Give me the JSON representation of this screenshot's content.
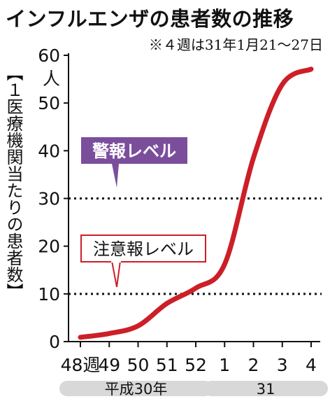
{
  "title": "インフルエンザの患者数の推移",
  "note": "※４週は31年1月21～27日",
  "ylabel": "【１医療機関当たりの患者数】",
  "y_unit": "人",
  "colors": {
    "line": "#cc1f27",
    "warning_box": "#7b4e9c",
    "advisory_border": "#cc1f27",
    "era_band": "#d8d8d8"
  },
  "chart_data": {
    "type": "line",
    "title": "インフルエンザの患者数の推移",
    "ylabel": "【１医療機関当たりの患者数】",
    "ylim": [
      0,
      60
    ],
    "yticks": [
      0,
      10,
      20,
      30,
      40,
      50,
      60
    ],
    "categories": [
      "48週",
      "49",
      "50",
      "51",
      "52",
      "1",
      "2",
      "3",
      "4"
    ],
    "values": [
      0.9,
      1.7,
      3.3,
      8.0,
      11.2,
      16.2,
      38.5,
      53.9,
      57.1
    ],
    "year_groups": [
      {
        "label": "平成30年",
        "from": 0,
        "to": 4
      },
      {
        "label": "31",
        "from": 5,
        "to": 8
      }
    ],
    "reference_lines": [
      {
        "label": "警報レベル",
        "value": 30,
        "style": "filled"
      },
      {
        "label": "注意報レベル",
        "value": 10,
        "style": "outlined"
      }
    ],
    "grid": false
  }
}
